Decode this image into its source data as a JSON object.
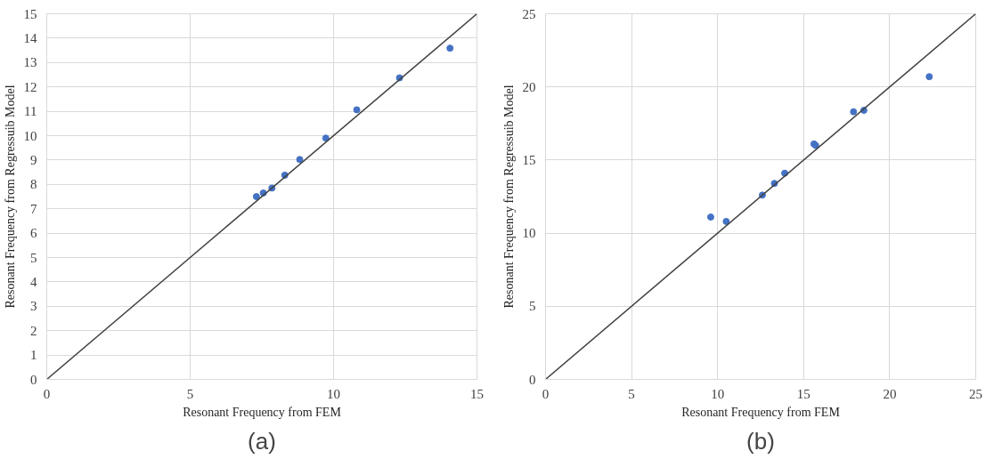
{
  "chart_data": [
    {
      "type": "scatter",
      "xlabel": "Resonant Frequency from FEM",
      "ylabel": "Resonant Frequency from Regressuib Model",
      "annotations": [
        "(a)"
      ],
      "xlim": [
        0,
        15
      ],
      "ylim": [
        0,
        15
      ],
      "xticks": [
        0,
        5,
        10,
        15
      ],
      "yticks": [
        0,
        1,
        2,
        3,
        4,
        5,
        6,
        7,
        8,
        9,
        10,
        11,
        12,
        13,
        14,
        15
      ],
      "grid": true,
      "series": [
        {
          "marker": "circle",
          "color": "#4472c4",
          "x": [
            7.31,
            7.55,
            7.85,
            8.3,
            8.82,
            9.73,
            10.81,
            12.3,
            14.06
          ],
          "values": [
            7.5,
            7.65,
            7.85,
            8.38,
            9.02,
            9.9,
            11.06,
            12.37,
            13.59
          ]
        },
        {
          "type": "line",
          "color": "#404040",
          "x": [
            0,
            15
          ],
          "values": [
            0,
            15
          ]
        }
      ]
    },
    {
      "type": "scatter",
      "xlabel": "Resonant Frequency from FEM",
      "ylabel": "Resonant Frequency from Regressuib Model",
      "annotations": [
        "(b)"
      ],
      "xlim": [
        0,
        25
      ],
      "ylim": [
        0,
        25
      ],
      "xticks": [
        0,
        5,
        10,
        15,
        20,
        25
      ],
      "yticks": [
        0,
        5,
        10,
        15,
        20,
        25
      ],
      "grid": true,
      "series": [
        {
          "marker": "circle",
          "color": "#4472c4",
          "x": [
            9.6,
            10.5,
            12.6,
            13.3,
            13.9,
            15.6,
            15.7,
            17.9,
            18.5,
            22.3
          ],
          "values": [
            11.1,
            10.8,
            12.6,
            13.4,
            14.1,
            16.1,
            16.0,
            18.3,
            18.4,
            20.7
          ]
        },
        {
          "type": "line",
          "color": "#404040",
          "x": [
            0,
            25
          ],
          "values": [
            0,
            25
          ]
        }
      ]
    }
  ]
}
